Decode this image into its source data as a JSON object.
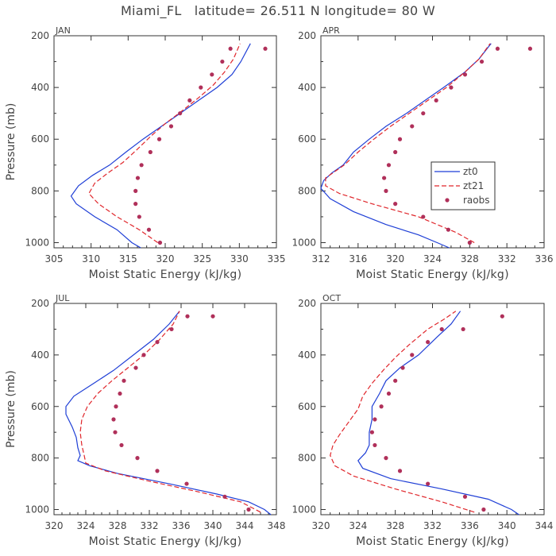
{
  "figure": {
    "title": "Miami_FL   latitude= 26.511 N longitude= 80 W"
  },
  "colors": {
    "zt0": "#1f3fd6",
    "zt21": "#e0262b",
    "raobs": "#b0305a",
    "axis": "#333333"
  },
  "chart_data": [
    {
      "type": "line",
      "panel_label": "JAN",
      "xlabel": "Moist Static Energy (kJ/kg)",
      "ylabel": "Pressure (mb)",
      "xlim": [
        305,
        335
      ],
      "ylim": [
        1020,
        200
      ],
      "xticks": [
        305,
        310,
        315,
        320,
        325,
        330,
        335
      ],
      "xtick_labels": [
        "305",
        "310",
        "315",
        "320",
        "325",
        "330",
        "335"
      ],
      "yticks": [
        200,
        400,
        600,
        800,
        1000
      ],
      "ytick_labels": [
        "200",
        "400",
        "600",
        "800",
        "1000"
      ],
      "series": [
        {
          "name": "zt0",
          "style": "solid",
          "points": [
            [
              316.7,
              1020
            ],
            [
              315.5,
              1000
            ],
            [
              313.5,
              950
            ],
            [
              310.5,
              900
            ],
            [
              308.0,
              850
            ],
            [
              307.3,
              820
            ],
            [
              308.3,
              780
            ],
            [
              310.2,
              740
            ],
            [
              312.5,
              700
            ],
            [
              314.7,
              650
            ],
            [
              317.0,
              600
            ],
            [
              319.5,
              550
            ],
            [
              322.0,
              500
            ],
            [
              324.5,
              450
            ],
            [
              327.0,
              400
            ],
            [
              329.0,
              350
            ],
            [
              330.2,
              300
            ],
            [
              331.5,
              230
            ]
          ]
        },
        {
          "name": "zt21",
          "style": "dashed",
          "points": [
            [
              319.0,
              1000
            ],
            [
              316.5,
              950
            ],
            [
              313.5,
              900
            ],
            [
              311.0,
              850
            ],
            [
              309.7,
              810
            ],
            [
              310.5,
              770
            ],
            [
              312.3,
              730
            ],
            [
              314.3,
              690
            ],
            [
              316.2,
              640
            ],
            [
              318.0,
              590
            ],
            [
              320.0,
              540
            ],
            [
              322.3,
              490
            ],
            [
              324.5,
              440
            ],
            [
              326.5,
              390
            ],
            [
              328.0,
              340
            ],
            [
              329.2,
              290
            ],
            [
              330.1,
              230
            ]
          ]
        },
        {
          "name": "raobs",
          "style": "dots",
          "points": [
            [
              319.3,
              1000
            ],
            [
              317.8,
              950
            ],
            [
              316.5,
              900
            ],
            [
              316.0,
              850
            ],
            [
              316.0,
              800
            ],
            [
              316.3,
              750
            ],
            [
              316.8,
              700
            ],
            [
              318.0,
              650
            ],
            [
              319.2,
              600
            ],
            [
              320.8,
              550
            ],
            [
              322.0,
              500
            ],
            [
              323.3,
              450
            ],
            [
              324.8,
              400
            ],
            [
              326.3,
              350
            ],
            [
              327.7,
              300
            ],
            [
              328.8,
              250
            ],
            [
              333.5,
              250
            ]
          ]
        }
      ]
    },
    {
      "type": "line",
      "panel_label": "APR",
      "xlabel": "Moist Static Energy (kJ/kg)",
      "ylabel": "",
      "xlim": [
        312,
        336
      ],
      "ylim": [
        1020,
        200
      ],
      "xticks": [
        312,
        316,
        320,
        324,
        328,
        332,
        336
      ],
      "xtick_labels": [
        "312",
        "316",
        "320",
        "324",
        "328",
        "332",
        "336"
      ],
      "yticks": [
        200,
        400,
        600,
        800,
        1000
      ],
      "ytick_labels": [
        "200",
        "400",
        "600",
        "800",
        "1000"
      ],
      "legend": {
        "entries": [
          "zt0",
          "zt21",
          "raobs"
        ],
        "placement": "right-middle"
      },
      "series": [
        {
          "name": "zt0",
          "style": "solid",
          "points": [
            [
              325.8,
              1020
            ],
            [
              324.5,
              1000
            ],
            [
              322.5,
              970
            ],
            [
              319.0,
              930
            ],
            [
              315.5,
              880
            ],
            [
              313.0,
              830
            ],
            [
              312.0,
              790
            ],
            [
              312.3,
              760
            ],
            [
              313.2,
              730
            ],
            [
              314.4,
              700
            ],
            [
              315.5,
              650
            ],
            [
              317.2,
              600
            ],
            [
              319.0,
              550
            ],
            [
              321.2,
              500
            ],
            [
              323.2,
              450
            ],
            [
              325.2,
              400
            ],
            [
              327.5,
              340
            ],
            [
              329.0,
              290
            ],
            [
              330.3,
              230
            ]
          ]
        },
        {
          "name": "zt21",
          "style": "dashed",
          "points": [
            [
              328.5,
              1000
            ],
            [
              326.5,
              960
            ],
            [
              322.5,
              900
            ],
            [
              317.5,
              850
            ],
            [
              314.0,
              810
            ],
            [
              312.5,
              780
            ],
            [
              312.5,
              750
            ],
            [
              313.3,
              730
            ],
            [
              314.5,
              700
            ],
            [
              316.0,
              650
            ],
            [
              317.7,
              600
            ],
            [
              319.5,
              550
            ],
            [
              321.5,
              500
            ],
            [
              323.5,
              450
            ],
            [
              325.5,
              400
            ],
            [
              327.5,
              340
            ],
            [
              329.0,
              290
            ],
            [
              330.2,
              230
            ]
          ]
        },
        {
          "name": "raobs",
          "style": "dots",
          "points": [
            [
              328.0,
              1000
            ],
            [
              325.7,
              950
            ],
            [
              323.0,
              900
            ],
            [
              320.0,
              850
            ],
            [
              319.0,
              800
            ],
            [
              318.8,
              750
            ],
            [
              319.3,
              700
            ],
            [
              320.0,
              650
            ],
            [
              320.5,
              600
            ],
            [
              321.8,
              550
            ],
            [
              323.0,
              500
            ],
            [
              324.4,
              450
            ],
            [
              326.0,
              400
            ],
            [
              327.5,
              350
            ],
            [
              329.3,
              300
            ],
            [
              331.0,
              250
            ],
            [
              334.5,
              250
            ]
          ]
        }
      ]
    },
    {
      "type": "line",
      "panel_label": "JUL",
      "xlabel": "Moist Static Energy (kJ/kg)",
      "ylabel": "Pressure (mb)",
      "xlim": [
        320,
        348
      ],
      "ylim": [
        1020,
        200
      ],
      "xticks": [
        320,
        324,
        328,
        332,
        336,
        340,
        344,
        348
      ],
      "xtick_labels": [
        "320",
        "324",
        "328",
        "332",
        "336",
        "340",
        "344",
        "348"
      ],
      "yticks": [
        200,
        400,
        600,
        800,
        1000
      ],
      "ytick_labels": [
        "200",
        "400",
        "600",
        "800",
        "1000"
      ],
      "series": [
        {
          "name": "zt0",
          "style": "solid",
          "points": [
            [
              347.3,
              1020
            ],
            [
              346.5,
              1000
            ],
            [
              344.5,
              970
            ],
            [
              340.5,
              940
            ],
            [
              334.5,
              900
            ],
            [
              328.0,
              860
            ],
            [
              324.5,
              830
            ],
            [
              323.0,
              810
            ],
            [
              323.3,
              790
            ],
            [
              323.0,
              760
            ],
            [
              322.8,
              720
            ],
            [
              322.3,
              680
            ],
            [
              321.5,
              630
            ],
            [
              321.5,
              600
            ],
            [
              322.5,
              560
            ],
            [
              325.0,
              510
            ],
            [
              327.5,
              460
            ],
            [
              330.0,
              400
            ],
            [
              332.5,
              340
            ],
            [
              334.5,
              280
            ],
            [
              335.8,
              230
            ]
          ]
        },
        {
          "name": "zt21",
          "style": "dashed",
          "points": [
            [
              346.0,
              1010
            ],
            [
              343.5,
              970
            ],
            [
              338.0,
              930
            ],
            [
              332.0,
              890
            ],
            [
              326.5,
              850
            ],
            [
              324.0,
              820
            ],
            [
              323.8,
              790
            ],
            [
              323.5,
              750
            ],
            [
              323.3,
              700
            ],
            [
              323.5,
              650
            ],
            [
              324.2,
              600
            ],
            [
              325.5,
              550
            ],
            [
              327.3,
              500
            ],
            [
              329.3,
              450
            ],
            [
              331.3,
              400
            ],
            [
              333.3,
              340
            ],
            [
              335.0,
              280
            ],
            [
              335.8,
              230
            ]
          ]
        },
        {
          "name": "raobs",
          "style": "dots",
          "points": [
            [
              344.5,
              1000
            ],
            [
              341.5,
              950
            ],
            [
              336.7,
              900
            ],
            [
              333.0,
              850
            ],
            [
              330.5,
              800
            ],
            [
              328.5,
              750
            ],
            [
              327.7,
              700
            ],
            [
              327.5,
              650
            ],
            [
              327.8,
              600
            ],
            [
              328.3,
              550
            ],
            [
              328.8,
              500
            ],
            [
              330.3,
              450
            ],
            [
              331.3,
              400
            ],
            [
              333.0,
              350
            ],
            [
              334.8,
              300
            ],
            [
              336.8,
              250
            ],
            [
              340.0,
              250
            ]
          ]
        }
      ]
    },
    {
      "type": "line",
      "panel_label": "OCT",
      "xlabel": "Moist Static Energy (kJ/kg)",
      "ylabel": "",
      "xlim": [
        320,
        344
      ],
      "ylim": [
        1020,
        200
      ],
      "xticks": [
        320,
        324,
        328,
        332,
        336,
        340,
        344
      ],
      "xtick_labels": [
        "320",
        "324",
        "328",
        "332",
        "336",
        "340",
        "344"
      ],
      "yticks": [
        200,
        400,
        600,
        800,
        1000
      ],
      "ytick_labels": [
        "200",
        "400",
        "600",
        "800",
        "1000"
      ],
      "series": [
        {
          "name": "zt0",
          "style": "solid",
          "points": [
            [
              341.3,
              1020
            ],
            [
              340.5,
              1000
            ],
            [
              338.0,
              960
            ],
            [
              333.0,
              920
            ],
            [
              327.5,
              880
            ],
            [
              324.5,
              840
            ],
            [
              324.0,
              810
            ],
            [
              324.8,
              780
            ],
            [
              325.2,
              750
            ],
            [
              325.2,
              700
            ],
            [
              325.5,
              650
            ],
            [
              325.5,
              600
            ],
            [
              326.3,
              550
            ],
            [
              327.0,
              500
            ],
            [
              328.5,
              450
            ],
            [
              330.5,
              400
            ],
            [
              332.5,
              330
            ],
            [
              334.0,
              280
            ],
            [
              335.0,
              230
            ]
          ]
        },
        {
          "name": "zt21",
          "style": "dashed",
          "points": [
            [
              336.5,
              1010
            ],
            [
              333.0,
              970
            ],
            [
              328.0,
              920
            ],
            [
              323.5,
              870
            ],
            [
              321.5,
              830
            ],
            [
              321.0,
              790
            ],
            [
              321.3,
              750
            ],
            [
              322.0,
              710
            ],
            [
              323.0,
              660
            ],
            [
              324.0,
              610
            ],
            [
              324.5,
              560
            ],
            [
              325.5,
              510
            ],
            [
              326.7,
              460
            ],
            [
              328.0,
              410
            ],
            [
              329.5,
              360
            ],
            [
              331.5,
              300
            ],
            [
              333.3,
              260
            ],
            [
              334.5,
              230
            ]
          ]
        },
        {
          "name": "raobs",
          "style": "dots",
          "points": [
            [
              337.5,
              1000
            ],
            [
              335.5,
              950
            ],
            [
              331.5,
              900
            ],
            [
              328.5,
              850
            ],
            [
              327.0,
              800
            ],
            [
              325.8,
              750
            ],
            [
              325.5,
              700
            ],
            [
              325.8,
              650
            ],
            [
              326.5,
              600
            ],
            [
              327.3,
              550
            ],
            [
              328.0,
              500
            ],
            [
              328.8,
              450
            ],
            [
              329.8,
              400
            ],
            [
              331.5,
              350
            ],
            [
              333.0,
              300
            ],
            [
              335.3,
              300
            ],
            [
              339.5,
              250
            ]
          ]
        }
      ]
    }
  ]
}
